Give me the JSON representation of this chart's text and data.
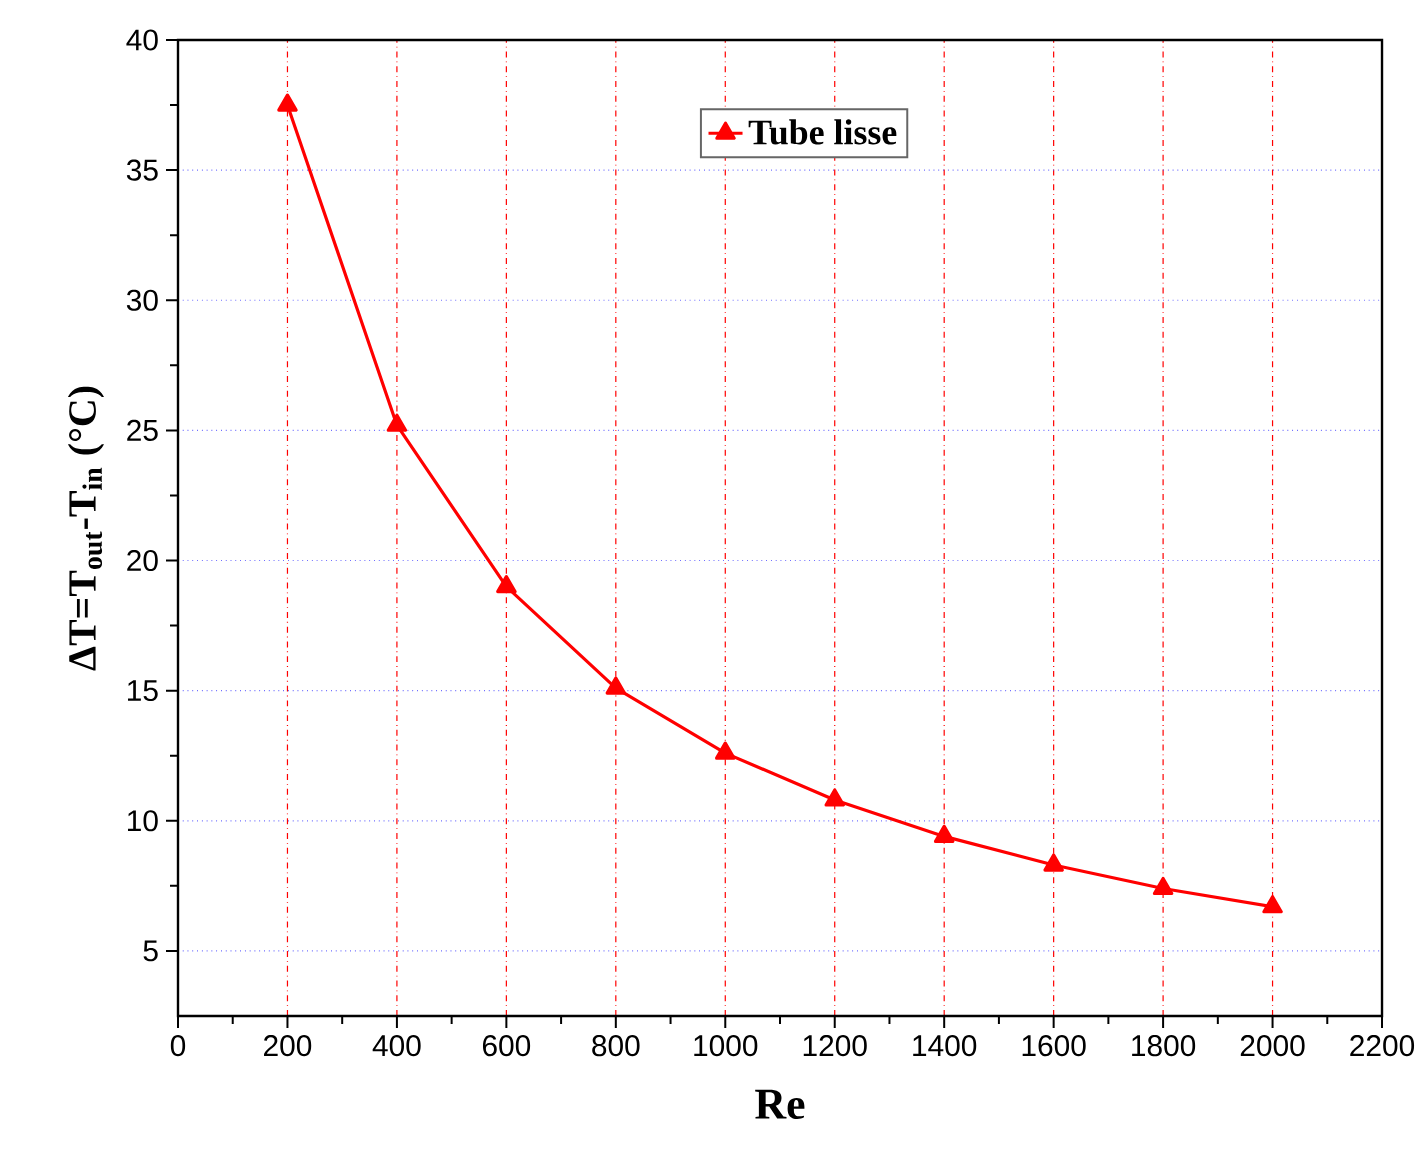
{
  "chart_data": {
    "type": "line",
    "xlabel": "Re",
    "ylabel": "ΔT=T$_{out}$-T$_{in}$ (°C)",
    "x": [
      200,
      400,
      600,
      800,
      1000,
      1200,
      1400,
      1600,
      1800,
      2000
    ],
    "series": [
      {
        "name": "Tube lisse",
        "color": "#ff0000",
        "values": [
          37.5,
          25.2,
          19.0,
          15.1,
          12.6,
          10.8,
          9.4,
          8.3,
          7.4,
          6.7
        ]
      }
    ],
    "xlim": [
      0,
      2200
    ],
    "ylim": [
      2.5,
      40
    ],
    "xticks": [
      0,
      200,
      400,
      600,
      800,
      1000,
      1200,
      1400,
      1600,
      1800,
      2000,
      2200
    ],
    "yticks": [
      5,
      10,
      15,
      20,
      25,
      30,
      35,
      40
    ],
    "grid": true,
    "legend": "top",
    "marker": "triangle",
    "line_style": "solid"
  }
}
